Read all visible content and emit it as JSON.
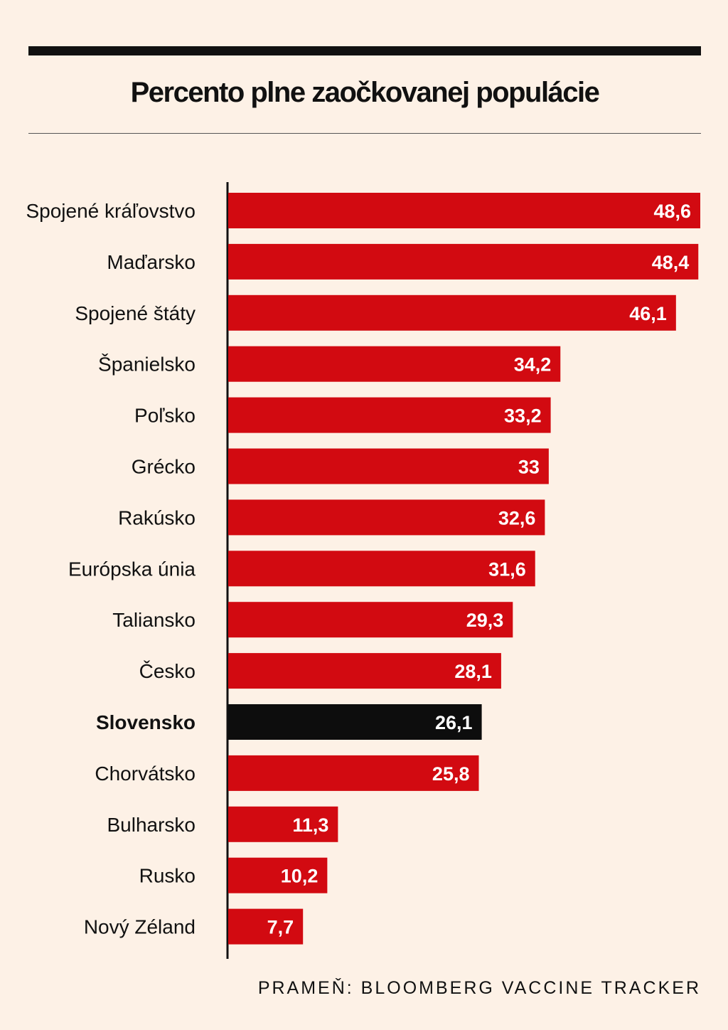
{
  "title": "Percento plne zaočkovanej populácie",
  "source": "PRAMEŇ: BLOOMBERG VACCINE TRACKER",
  "colors": {
    "bar": "#d20a11",
    "highlight_bar": "#0d0d0d",
    "background": "#fdf1e6",
    "text": "#111111"
  },
  "chart_data": {
    "type": "bar",
    "orientation": "horizontal",
    "categories": [
      "Spojené kráľovstvo",
      "Maďarsko",
      "Spojené štáty",
      "Španielsko",
      "Poľsko",
      "Grécko",
      "Rakúsko",
      "Európska únia",
      "Taliansko",
      "Česko",
      "Slovensko",
      "Chorvátsko",
      "Bulharsko",
      "Rusko",
      "Nový Zéland"
    ],
    "values": [
      48.6,
      48.4,
      46.1,
      34.2,
      33.2,
      33,
      32.6,
      31.6,
      29.3,
      28.1,
      26.1,
      25.8,
      11.3,
      10.2,
      7.7
    ],
    "value_labels": [
      "48,6",
      "48,4",
      "46,1",
      "34,2",
      "33,2",
      "33",
      "32,6",
      "31,6",
      "29,3",
      "28,1",
      "26,1",
      "25,8",
      "11,3",
      "10,2",
      "7,7"
    ],
    "highlight": "Slovensko",
    "title": "Percento plne zaočkovanej populácie",
    "xlabel": "",
    "ylabel": "",
    "xlim": [
      0,
      48.6
    ],
    "grid": false,
    "legend": "none"
  }
}
